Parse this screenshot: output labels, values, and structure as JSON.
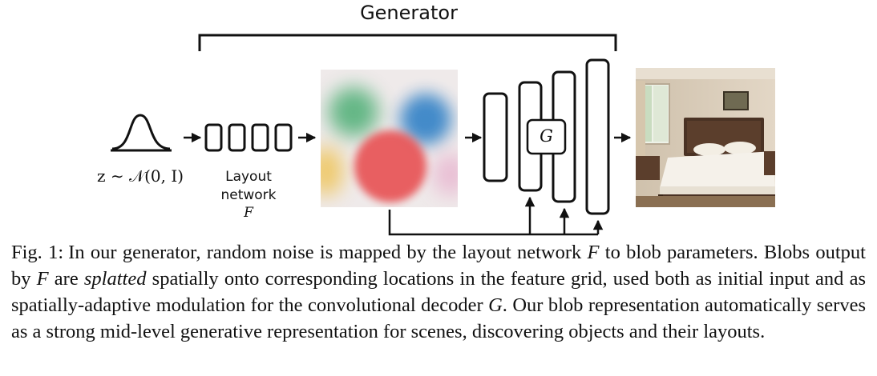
{
  "figure": {
    "generator_label": "Generator",
    "noise_label": "z ∼ 𝒩(0, I)",
    "layout_label_line1": "Layout",
    "layout_label_line2": "network",
    "layout_symbol": "F",
    "decoder_symbol": "G"
  },
  "caption": {
    "label": "Fig. 1:",
    "part1": "In our generator, random noise is mapped by the layout network ",
    "var_f1": "F",
    "part2": " to blob parameters. Blobs output by ",
    "var_f2": "F",
    "part3": " are ",
    "emph": "splatted",
    "part4": " spatially onto corresponding locations in the feature grid, used both as initial input and as spatially-adaptive modulation for the convolutional decoder ",
    "var_g": "G",
    "part5": ". Our blob representation automatically serves as a strong mid-level generative representation for scenes, discovering objects and their layouts."
  },
  "colors": {
    "blob_green": "#4cae74",
    "blob_blue": "#3a86c8",
    "blob_red": "#e8585a",
    "blob_yellow": "#efc24e",
    "blob_pink": "#e8b4cf"
  }
}
